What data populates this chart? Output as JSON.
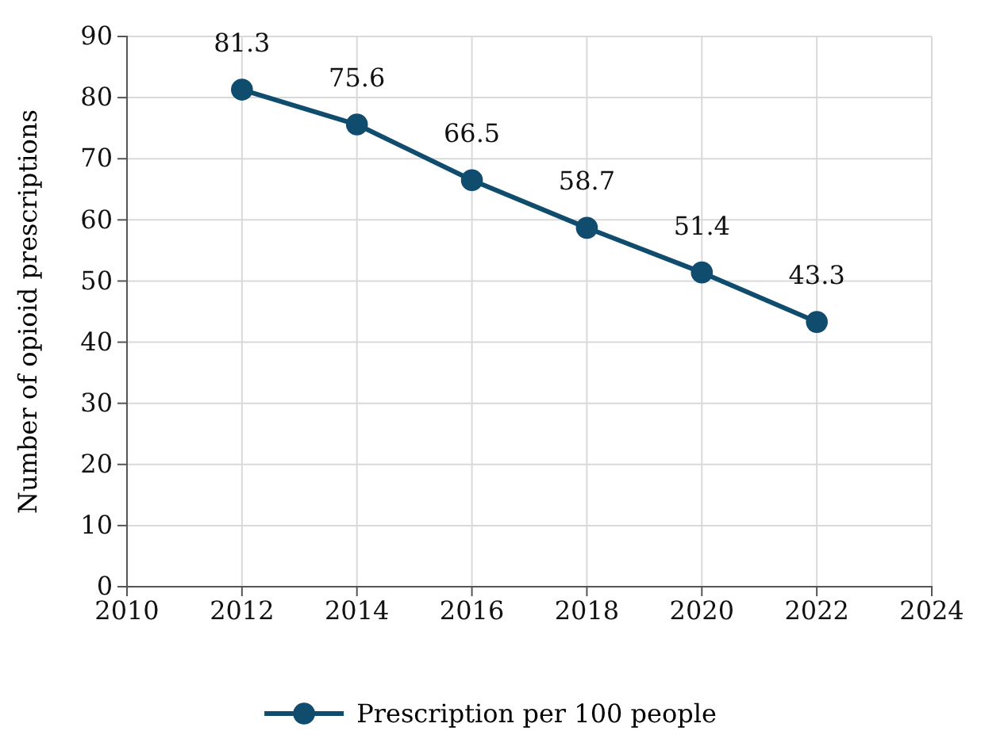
{
  "chart_data": {
    "type": "line",
    "ylabel": "Number of opioid prescriptions",
    "x": [
      2012,
      2014,
      2016,
      2018,
      2020,
      2022
    ],
    "series": [
      {
        "name": "Prescription per 100 people",
        "color": "#0f4c6e",
        "values": [
          81.3,
          75.6,
          66.5,
          58.7,
          51.4,
          43.3
        ]
      }
    ],
    "xlim": [
      2010,
      2024
    ],
    "xticks": [
      2010,
      2012,
      2014,
      2016,
      2018,
      2020,
      2022,
      2024
    ],
    "ylim": [
      0,
      90
    ],
    "yticks": [
      0,
      10,
      20,
      30,
      40,
      50,
      60,
      70,
      80,
      90
    ],
    "grid": true,
    "legend": "bottom",
    "data_labels": true,
    "marker": "circle",
    "line_style": "solid"
  }
}
